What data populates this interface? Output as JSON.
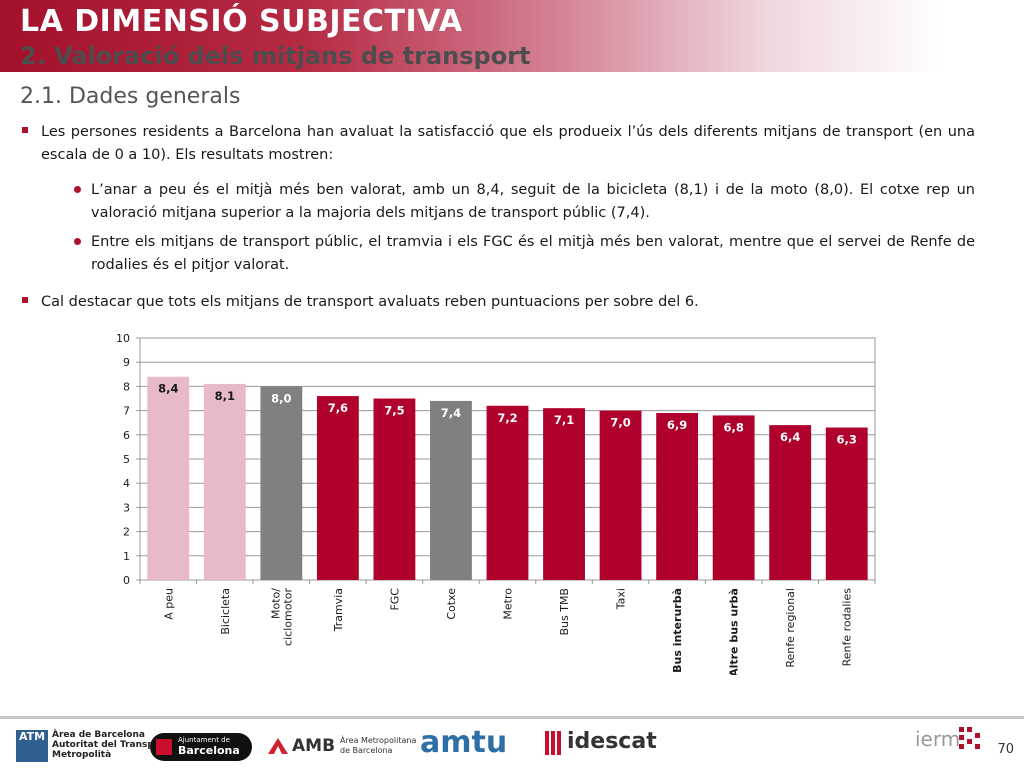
{
  "header": {
    "title": "LA DIMENSIÓ SUBJECTIVA",
    "subtitle": "2. Valoració dels mitjans de transport"
  },
  "section": {
    "title": "2.1. Dades generals"
  },
  "bullets": {
    "intro": "Les persones residents a Barcelona han avaluat la satisfacció que els produeix l’ús dels diferents mitjans de transport (en una escala de 0 a 10). Els resultats mostren:",
    "sub1": "L’anar a peu és el mitjà més ben valorat, amb un 8,4, seguit de la bicicleta (8,1) i de la moto (8,0). El cotxe rep un valoració mitjana superior a la majoria dels mitjans de transport públic (7,4).",
    "sub2": "Entre els mitjans de transport públic, el tramvia i els FGC és el mitjà més ben valorat, mentre que el servei de Renfe de rodalies és el pitjor valorat.",
    "last": "Cal destacar que tots els mitjans de transport avaluats reben puntuacions per sobre del 6."
  },
  "chart_data": {
    "type": "bar",
    "title": "",
    "xlabel": "",
    "ylabel": "",
    "ylim": [
      0,
      10
    ],
    "yticks": [
      0,
      1,
      2,
      3,
      4,
      5,
      6,
      7,
      8,
      9,
      10
    ],
    "grid": true,
    "categories": [
      "A peu",
      "Bicicleta",
      "Moto/ ciclomotor",
      "Tramvia",
      "FGC",
      "Cotxe",
      "Metro",
      "Bus TMB",
      "Taxi",
      "Bus interurbà",
      "Altre bus urbà",
      "Renfe regional",
      "Renfe rodalies"
    ],
    "values": [
      8.4,
      8.1,
      8.0,
      7.6,
      7.5,
      7.4,
      7.2,
      7.1,
      7.0,
      6.9,
      6.8,
      6.4,
      6.3
    ],
    "value_labels": [
      "8,4",
      "8,1",
      "8,0",
      "7,6",
      "7,5",
      "7,4",
      "7,2",
      "7,1",
      "7,0",
      "6,9",
      "6,8",
      "6,4",
      "6,3"
    ],
    "bar_colors": [
      "#e8b9c6",
      "#e8b9c6",
      "#808080",
      "#b0002c",
      "#b0002c",
      "#808080",
      "#b0002c",
      "#b0002c",
      "#b0002c",
      "#b0002c",
      "#b0002c",
      "#b0002c",
      "#b0002c"
    ],
    "label_colors": [
      "#1a1a1a",
      "#1a1a1a",
      "#ffffff",
      "#ffffff",
      "#ffffff",
      "#ffffff",
      "#ffffff",
      "#ffffff",
      "#ffffff",
      "#ffffff",
      "#ffffff",
      "#ffffff",
      "#ffffff"
    ],
    "bold_categories": [
      false,
      false,
      false,
      false,
      false,
      false,
      false,
      false,
      false,
      true,
      true,
      false,
      false
    ]
  },
  "footer": {
    "logo_atm": "ATM",
    "logo_atm_text1": "Àrea de Barcelona",
    "logo_atm_text2": "Autoritat del Transport",
    "logo_atm_text3": "Metropolità",
    "logo_ajuntament1": "Ajuntament de",
    "logo_ajuntament2": "Barcelona",
    "logo_amb": "AMB",
    "logo_amb_text1": "Àrea Metropolitana",
    "logo_amb_text2": "de Barcelona",
    "logo_amtu": "amtu",
    "logo_idescat": "idescat",
    "logo_iermb": "ierm",
    "page_number": "70"
  },
  "colors": {
    "brand": "#b0102c",
    "header_sub": "#4d4d4d"
  }
}
